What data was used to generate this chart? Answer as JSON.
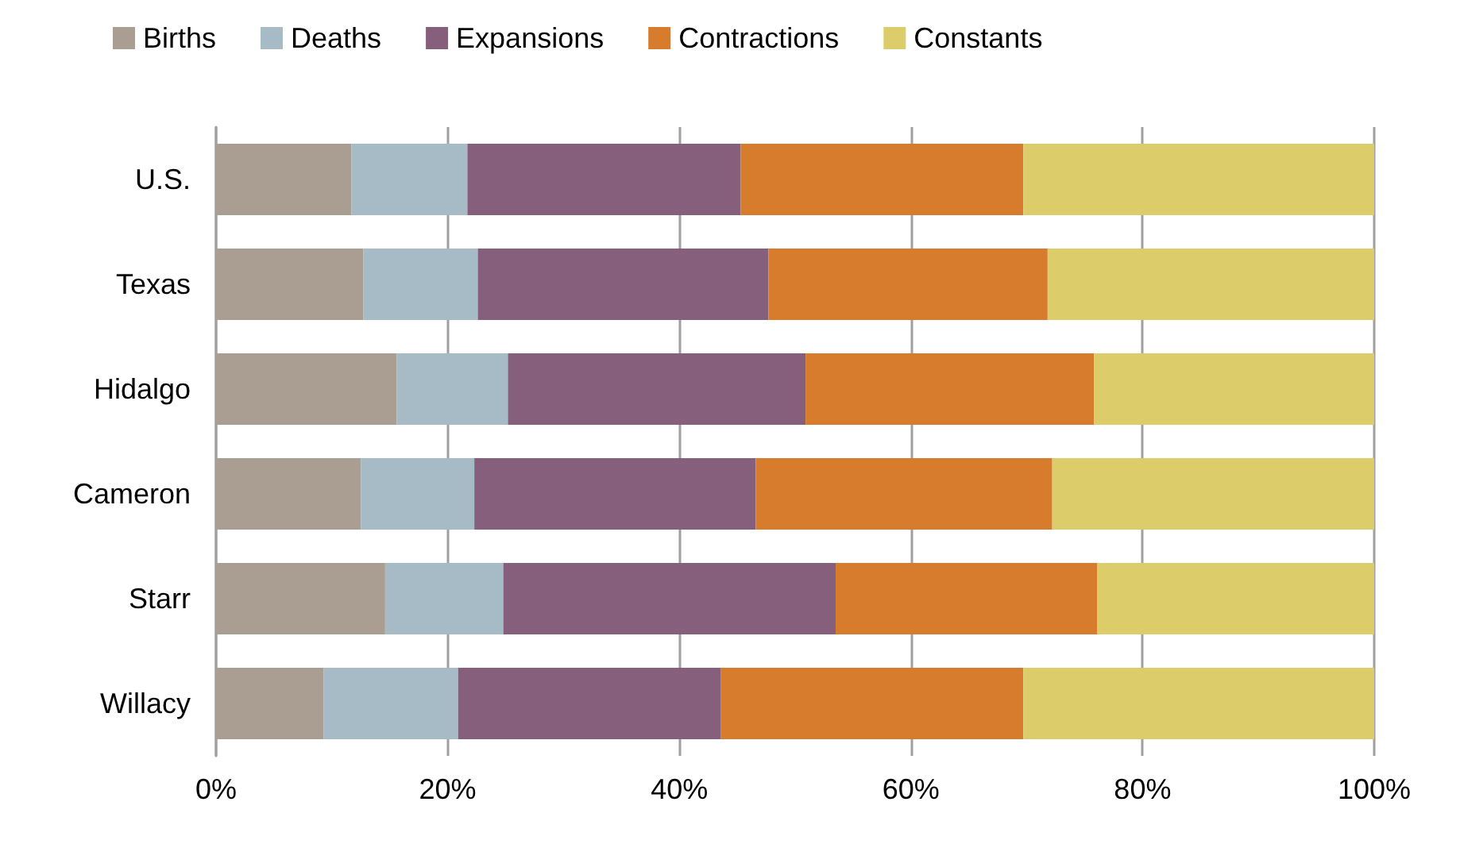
{
  "chart_data": {
    "type": "bar",
    "orientation": "horizontal",
    "stacked": true,
    "categories": [
      "U.S.",
      "Texas",
      "Hidalgo",
      "Cameron",
      "Starr",
      "Willacy"
    ],
    "series": [
      {
        "name": "Births",
        "color": "#aa9e93",
        "values": [
          11.7,
          12.7,
          15.6,
          12.5,
          14.6,
          9.3
        ]
      },
      {
        "name": "Deaths",
        "color": "#a6bbc6",
        "values": [
          10.0,
          9.9,
          9.6,
          9.8,
          10.2,
          11.6
        ]
      },
      {
        "name": "Expansions",
        "color": "#865f7d",
        "values": [
          23.6,
          25.1,
          25.7,
          24.3,
          28.7,
          22.7
        ]
      },
      {
        "name": "Contractions",
        "color": "#d67c2c",
        "values": [
          24.4,
          24.1,
          24.9,
          25.6,
          22.6,
          26.1
        ]
      },
      {
        "name": "Constants",
        "color": "#dccd6a",
        "values": [
          30.3,
          28.2,
          24.2,
          27.8,
          23.9,
          30.3
        ]
      }
    ],
    "xlim": [
      0,
      100
    ],
    "xticks": [
      {
        "value": 0,
        "label": "0%"
      },
      {
        "value": 20,
        "label": "20%"
      },
      {
        "value": 40,
        "label": "40%"
      },
      {
        "value": 60,
        "label": "60%"
      },
      {
        "value": 80,
        "label": "80%"
      },
      {
        "value": 100,
        "label": "100%"
      }
    ],
    "grid": "x",
    "legend": "top"
  }
}
